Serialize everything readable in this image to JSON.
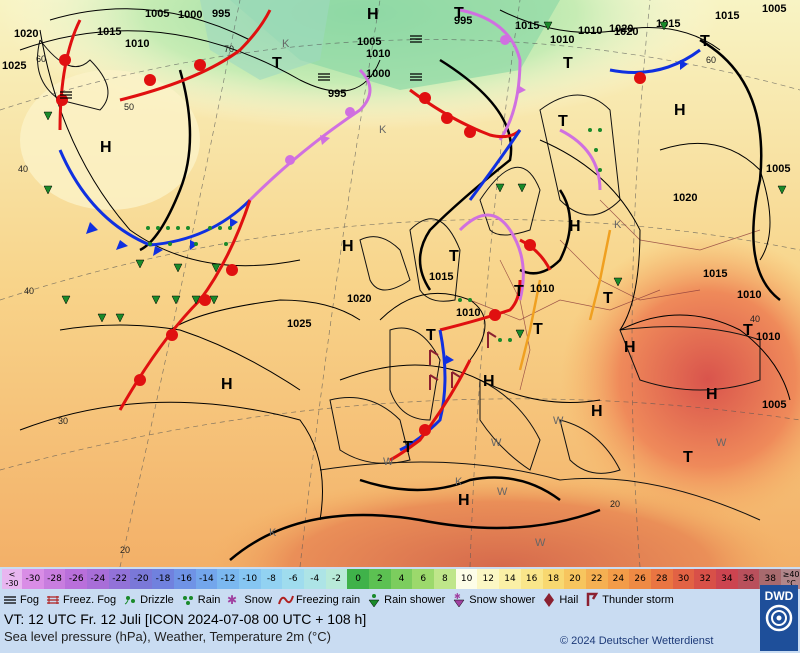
{
  "map": {
    "pressure_labels": [
      "1005",
      "1000",
      "995",
      "1015",
      "1010",
      "1020",
      "1025",
      "1005",
      "1010",
      "995",
      "1015",
      "1020",
      "1010",
      "995",
      "1000",
      "1005",
      "1015",
      "1010",
      "1015",
      "1020",
      "1025",
      "1010",
      "1015",
      "1020",
      "1005",
      "1010",
      "1005",
      "1015",
      "1010",
      "1010",
      "1020",
      "1025",
      "1010"
    ],
    "temperature_labels": [
      "60",
      "50",
      "40",
      "40",
      "30",
      "20",
      "20",
      "60",
      "70",
      "40"
    ],
    "high_marker": "H",
    "low_marker": "T",
    "weather_letters": [
      "K",
      "K",
      "K",
      "W",
      "W",
      "W",
      "W",
      "K",
      "W",
      "K",
      "W"
    ]
  },
  "legend": {
    "temperature_scale": [
      {
        "label": "< -30",
        "color": "#e8b6f0"
      },
      {
        "label": "-30",
        "color": "#d98de6"
      },
      {
        "label": "-28",
        "color": "#c87ddf"
      },
      {
        "label": "-26",
        "color": "#b96fdb"
      },
      {
        "label": "-24",
        "color": "#a86ed8"
      },
      {
        "label": "-22",
        "color": "#9272d8"
      },
      {
        "label": "-20",
        "color": "#7a78d8"
      },
      {
        "label": "-18",
        "color": "#7081de"
      },
      {
        "label": "-16",
        "color": "#6f93e6"
      },
      {
        "label": "-14",
        "color": "#73a6ec"
      },
      {
        "label": "-12",
        "color": "#7bb8f0"
      },
      {
        "label": "-10",
        "color": "#86c6f2"
      },
      {
        "label": "-8",
        "color": "#92d2f2"
      },
      {
        "label": "-6",
        "color": "#9fdcee"
      },
      {
        "label": "-4",
        "color": "#ade4e6"
      },
      {
        "label": "-2",
        "color": "#b8ead8"
      },
      {
        "label": "0",
        "color": "#3fb24a"
      },
      {
        "label": "2",
        "color": "#5cc152"
      },
      {
        "label": "4",
        "color": "#7ccd5e"
      },
      {
        "label": "6",
        "color": "#9cd96c"
      },
      {
        "label": "8",
        "color": "#bfe68a"
      },
      {
        "label": "10",
        "color": "#fdfde8"
      },
      {
        "label": "12",
        "color": "#fbf7c4"
      },
      {
        "label": "14",
        "color": "#fbf0a6"
      },
      {
        "label": "16",
        "color": "#fae68a"
      },
      {
        "label": "18",
        "color": "#f8d870"
      },
      {
        "label": "20",
        "color": "#f7c55e"
      },
      {
        "label": "22",
        "color": "#f5b052"
      },
      {
        "label": "24",
        "color": "#f39c48"
      },
      {
        "label": "26",
        "color": "#ef8a44"
      },
      {
        "label": "28",
        "color": "#ea7542"
      },
      {
        "label": "30",
        "color": "#e26244"
      },
      {
        "label": "32",
        "color": "#d85048"
      },
      {
        "label": "34",
        "color": "#cc4450"
      },
      {
        "label": "36",
        "color": "#b9505c"
      },
      {
        "label": "38",
        "color": "#a86a6e"
      },
      {
        "label": "≥40 °C",
        "color": "#b0868a"
      }
    ],
    "symbols": [
      {
        "icon": "fog-icon",
        "label": "Fog"
      },
      {
        "icon": "freezing-fog-icon",
        "label": "Freez. Fog"
      },
      {
        "icon": "drizzle-icon",
        "label": "Drizzle"
      },
      {
        "icon": "rain-icon",
        "label": "Rain"
      },
      {
        "icon": "snow-icon",
        "label": "Snow"
      },
      {
        "icon": "freezing-rain-icon",
        "label": "Freezing rain"
      },
      {
        "icon": "rain-shower-icon",
        "label": "Rain shower"
      },
      {
        "icon": "snow-shower-icon",
        "label": "Snow shower"
      },
      {
        "icon": "hail-icon",
        "label": "Hail"
      },
      {
        "icon": "thunderstorm-icon",
        "label": "Thunder storm"
      }
    ],
    "valid_time": "VT: 12 UTC Fr.  12 Juli [ICON 2024-07-08  00 UTC + 108 h]",
    "description": "Sea level pressure (hPa), Weather, Temperature 2m (°C)",
    "copyright": "© 2024 Deutscher Wetterdienst",
    "logo_text": "DWD"
  },
  "colors": {
    "cold_front": "#1030e0",
    "warm_front": "#e01010",
    "occlusion": "#d070e0",
    "trough": "#f0a020"
  }
}
